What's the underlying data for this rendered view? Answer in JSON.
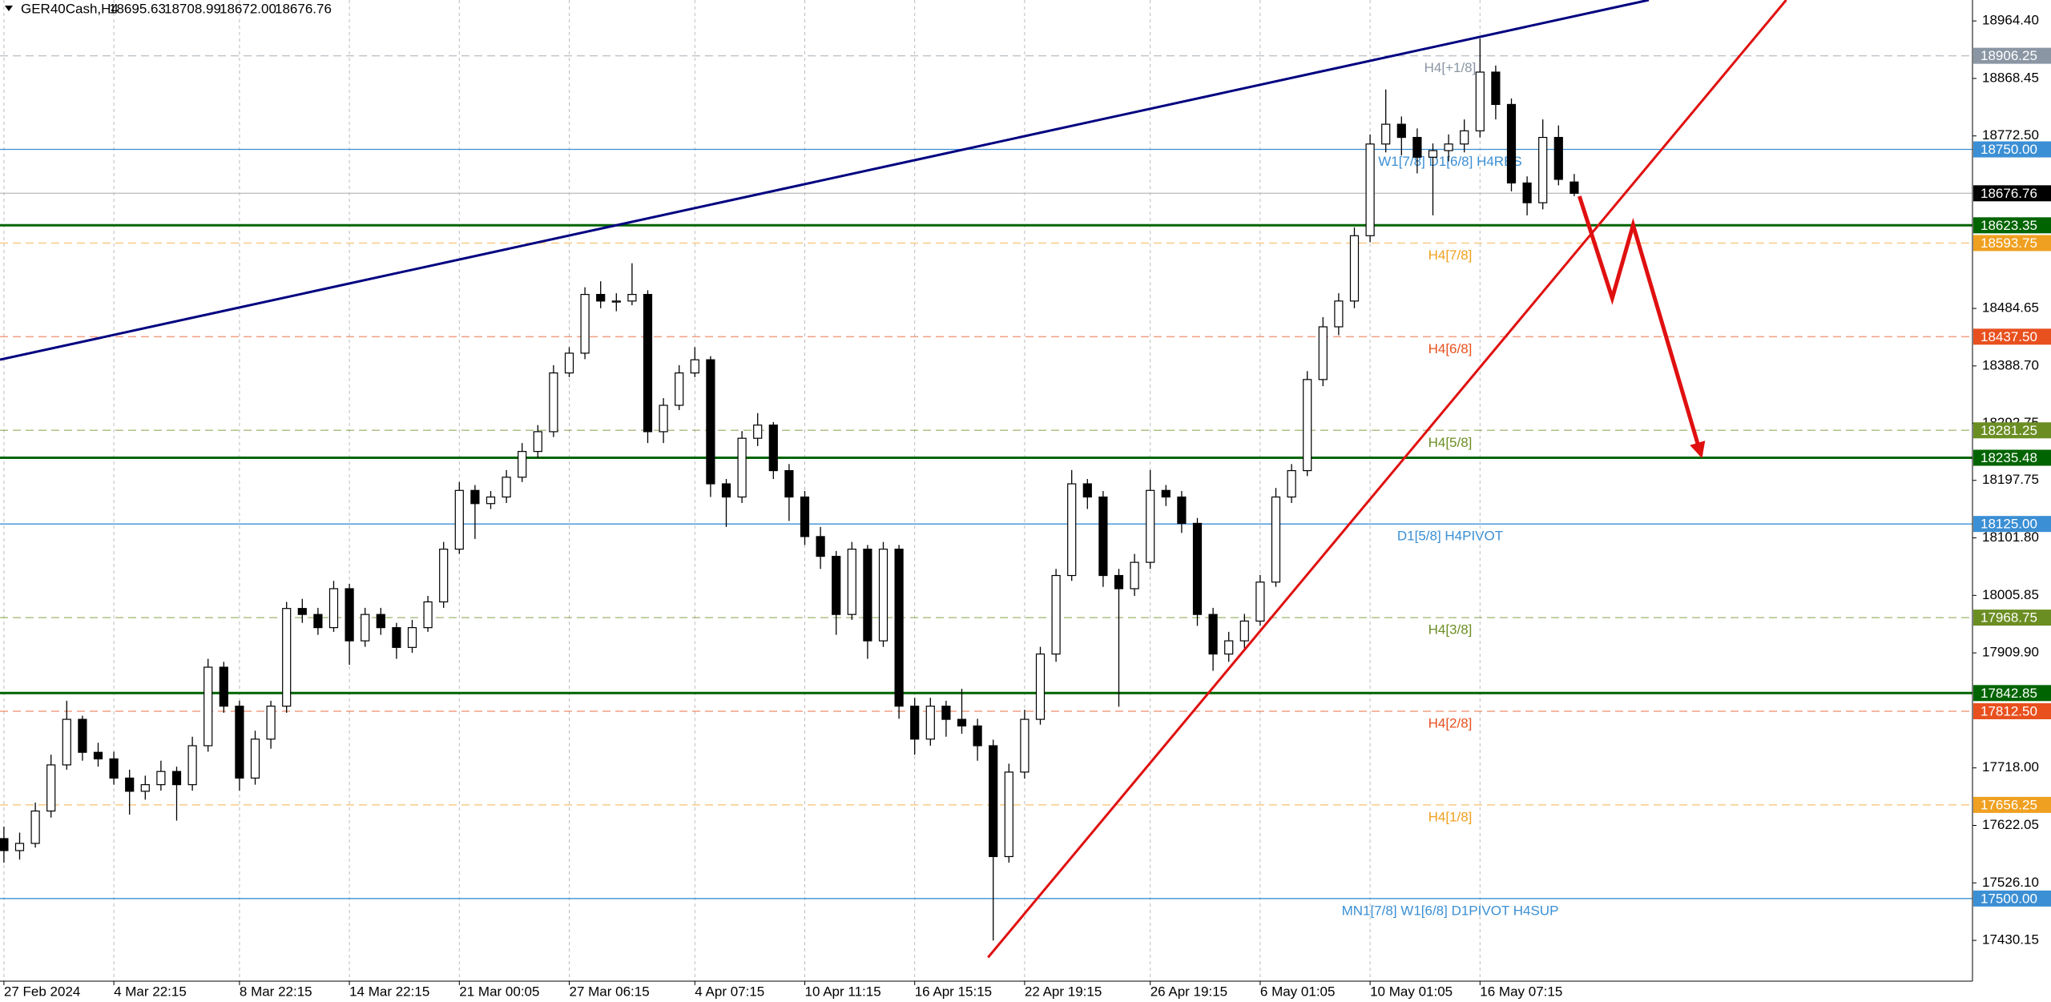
{
  "chart_data": {
    "type": "candlestick",
    "header": {
      "symbol": "GER40Cash,H4",
      "ohlc": [
        "18695.63",
        "18708.99",
        "18672.00",
        "18676.76"
      ]
    },
    "categories": [
      "27 Feb 2024",
      null,
      null,
      null,
      null,
      null,
      null,
      "4 Mar 22:15",
      null,
      null,
      null,
      null,
      null,
      null,
      null,
      "8 Mar 22:15",
      null,
      null,
      null,
      null,
      null,
      null,
      "14 Mar 22:15",
      null,
      null,
      null,
      null,
      null,
      null,
      "21 Mar 00:05",
      null,
      null,
      null,
      null,
      null,
      null,
      "27 Mar 06:15",
      null,
      null,
      null,
      null,
      null,
      null,
      null,
      "4 Apr 07:15",
      null,
      null,
      null,
      null,
      null,
      null,
      "10 Apr 11:15",
      null,
      null,
      null,
      null,
      null,
      null,
      "16 Apr 15:15",
      null,
      null,
      null,
      null,
      null,
      null,
      "22 Apr 19:15",
      null,
      null,
      null,
      null,
      null,
      null,
      null,
      "26 Apr 19:15",
      null,
      null,
      null,
      null,
      null,
      null,
      "6 May 01:05",
      null,
      null,
      null,
      null,
      null,
      null,
      "10 May 01:05",
      null,
      null,
      null,
      null,
      null,
      null,
      "16 May 07:15",
      null,
      null,
      null,
      null,
      null,
      null
    ],
    "ohlc": [
      [
        17600,
        17620,
        17560,
        17580
      ],
      [
        17580,
        17610,
        17565,
        17592
      ],
      [
        17592,
        17660,
        17585,
        17646
      ],
      [
        17646,
        17740,
        17635,
        17723
      ],
      [
        17723,
        17830,
        17715,
        17799
      ],
      [
        17799,
        17805,
        17730,
        17744
      ],
      [
        17744,
        17760,
        17720,
        17733
      ],
      [
        17733,
        17745,
        17690,
        17701
      ],
      [
        17701,
        17715,
        17640,
        17679
      ],
      [
        17679,
        17705,
        17665,
        17690
      ],
      [
        17690,
        17730,
        17680,
        17712
      ],
      [
        17712,
        17720,
        17630,
        17690
      ],
      [
        17690,
        17770,
        17680,
        17755
      ],
      [
        17755,
        17900,
        17745,
        17886
      ],
      [
        17886,
        17895,
        17810,
        17821
      ],
      [
        17821,
        17830,
        17680,
        17701
      ],
      [
        17701,
        17780,
        17690,
        17766
      ],
      [
        17766,
        17830,
        17750,
        17821
      ],
      [
        17821,
        17995,
        17810,
        17984
      ],
      [
        17984,
        18000,
        17960,
        17974
      ],
      [
        17974,
        17985,
        17940,
        17952
      ],
      [
        17952,
        18030,
        17945,
        18017
      ],
      [
        18017,
        18025,
        17890,
        17930
      ],
      [
        17930,
        17985,
        17920,
        17974
      ],
      [
        17974,
        17985,
        17940,
        17952
      ],
      [
        17952,
        17960,
        17900,
        17919
      ],
      [
        17919,
        17965,
        17910,
        17952
      ],
      [
        17952,
        18005,
        17945,
        17995
      ],
      [
        17995,
        18095,
        17985,
        18083
      ],
      [
        18083,
        18195,
        18075,
        18181
      ],
      [
        18181,
        18190,
        18100,
        18159
      ],
      [
        18159,
        18180,
        18150,
        18170
      ],
      [
        18170,
        18215,
        18160,
        18203
      ],
      [
        18203,
        18260,
        18195,
        18246
      ],
      [
        18246,
        18290,
        18235,
        18279
      ],
      [
        18279,
        18390,
        18270,
        18377
      ],
      [
        18377,
        18420,
        18370,
        18410
      ],
      [
        18410,
        18520,
        18400,
        18508
      ],
      [
        18508,
        18530,
        18485,
        18497
      ],
      [
        18497,
        18510,
        18480,
        18497
      ],
      [
        18497,
        18560,
        18490,
        18508
      ],
      [
        18508,
        18515,
        18260,
        18279
      ],
      [
        18279,
        18335,
        18260,
        18323
      ],
      [
        18323,
        18390,
        18315,
        18377
      ],
      [
        18377,
        18420,
        18370,
        18399
      ],
      [
        18399,
        18405,
        18170,
        18192
      ],
      [
        18192,
        18200,
        18120,
        18170
      ],
      [
        18170,
        18280,
        18160,
        18268
      ],
      [
        18268,
        18310,
        18255,
        18290
      ],
      [
        18290,
        18295,
        18200,
        18214
      ],
      [
        18214,
        18225,
        18130,
        18170
      ],
      [
        18170,
        18180,
        18090,
        18104
      ],
      [
        18104,
        18120,
        18050,
        18071
      ],
      [
        18071,
        18080,
        17940,
        17974
      ],
      [
        17974,
        18095,
        17965,
        18083
      ],
      [
        18083,
        18090,
        17900,
        17930
      ],
      [
        17930,
        18095,
        17920,
        18083
      ],
      [
        18083,
        18090,
        17800,
        17821
      ],
      [
        17821,
        17835,
        17740,
        17766
      ],
      [
        17766,
        17835,
        17755,
        17821
      ],
      [
        17821,
        17830,
        17770,
        17799
      ],
      [
        17799,
        17850,
        17775,
        17788
      ],
      [
        17788,
        17800,
        17730,
        17755
      ],
      [
        17755,
        17765,
        17430,
        17570
      ],
      [
        17570,
        17725,
        17560,
        17711
      ],
      [
        17711,
        17815,
        17700,
        17799
      ],
      [
        17799,
        17920,
        17790,
        17908
      ],
      [
        17908,
        18050,
        17895,
        18039
      ],
      [
        18039,
        18215,
        18030,
        18192
      ],
      [
        18192,
        18200,
        18150,
        18170
      ],
      [
        18170,
        18180,
        18020,
        18039
      ],
      [
        18039,
        18050,
        17820,
        18017
      ],
      [
        18017,
        18075,
        18005,
        18061
      ],
      [
        18061,
        18215,
        18050,
        18181
      ],
      [
        18181,
        18190,
        18155,
        18170
      ],
      [
        18170,
        18180,
        18110,
        18126
      ],
      [
        18126,
        18135,
        17955,
        17974
      ],
      [
        17974,
        17985,
        17880,
        17908
      ],
      [
        17908,
        17945,
        17895,
        17930
      ],
      [
        17930,
        17975,
        17915,
        17963
      ],
      [
        17963,
        18040,
        17955,
        18028
      ],
      [
        18028,
        18185,
        18020,
        18170
      ],
      [
        18170,
        18225,
        18160,
        18214
      ],
      [
        18214,
        18380,
        18205,
        18366
      ],
      [
        18366,
        18470,
        18355,
        18454
      ],
      [
        18454,
        18510,
        18440,
        18497
      ],
      [
        18497,
        18620,
        18485,
        18606
      ],
      [
        18606,
        18775,
        18595,
        18759
      ],
      [
        18759,
        18850,
        18745,
        18792
      ],
      [
        18792,
        18805,
        18740,
        18770
      ],
      [
        18770,
        18785,
        18710,
        18737
      ],
      [
        18737,
        18760,
        18640,
        18748
      ],
      [
        18748,
        18775,
        18730,
        18759
      ],
      [
        18759,
        18800,
        18745,
        18781
      ],
      [
        18781,
        18935,
        18770,
        18879
      ],
      [
        18879,
        18890,
        18800,
        18825
      ],
      [
        18825,
        18835,
        18680,
        18694
      ],
      [
        18694,
        18705,
        18640,
        18661
      ],
      [
        18661,
        18800,
        18650,
        18770
      ],
      [
        18770,
        18790,
        18690,
        18700
      ],
      [
        18695.63,
        18708.99,
        18672.0,
        18676.76
      ]
    ],
    "ylim": [
      17362.1,
      18999.3
    ],
    "yticks": [
      {
        "value": 18964.4,
        "label": "18964.40"
      },
      18868.45,
      {
        "value": 18772.5,
        "label": "18772.50"
      },
      18484.65,
      {
        "value": 18388.7,
        "label": "18388.70"
      },
      18292.75,
      18197.75,
      {
        "value": 18101.8,
        "label": "18101.80"
      },
      18005.85,
      {
        "value": 17909.9,
        "label": "17909.90"
      },
      {
        "value": 17718,
        "label": "17718.00"
      },
      17622.05,
      {
        "value": 17526.1,
        "label": "17526.10"
      },
      17430.15
    ],
    "levels": [
      {
        "value": 18906.25,
        "label": "18906.25",
        "text": "H4[+1/8]",
        "color": "#8a96a3",
        "style": "dash"
      },
      {
        "value": 18750,
        "label": "18750.00",
        "text": "W1[7/8] D1[6/8] H4RES",
        "color": "#3b8fd4",
        "style": "solid"
      },
      {
        "value": 18676.76,
        "label": "18676.76",
        "color": "#000000",
        "line_color": "#c0c0c0",
        "style": "solid"
      },
      {
        "value": 18623.35,
        "label": "18623.35",
        "color": "#006400",
        "style": "thick"
      },
      {
        "value": 18593.75,
        "label": "18593.75",
        "text": "H4[7/8]",
        "color": "#f0a020",
        "style": "dash"
      },
      {
        "value": 18437.5,
        "label": "18437.50",
        "text": "H4[6/8]",
        "color": "#e8501e",
        "style": "dash"
      },
      {
        "value": 18281.25,
        "label": "18281.25",
        "text": "H4[5/8]",
        "color": "#6b8e23",
        "style": "dash"
      },
      {
        "value": 18235.48,
        "label": "18235.48",
        "color": "#006400",
        "style": "thick"
      },
      {
        "value": 18125,
        "label": "18125.00",
        "text": "D1[5/8] H4PIVOT",
        "color": "#3b8fd4",
        "style": "solid"
      },
      {
        "value": 17968.75,
        "label": "17968.75",
        "text": "H4[3/8]",
        "color": "#6b8e23",
        "style": "dash"
      },
      {
        "value": 17842.85,
        "label": "17842.85",
        "color": "#006400",
        "style": "thick"
      },
      {
        "value": 17812.5,
        "label": "17812.50",
        "text": "H4[2/8]",
        "color": "#e8501e",
        "style": "dash"
      },
      {
        "value": 17656.25,
        "label": "17656.25",
        "text": "H4[1/8]",
        "color": "#f0a020",
        "style": "dash"
      },
      {
        "value": 17500,
        "label": "17500.00",
        "text": "MN1[7/8] W1[6/8] D1PIVOT H4SUP",
        "color": "#3b8fd4",
        "style": "solid"
      }
    ],
    "trendlines": [
      {
        "color": "#000080",
        "x": [
          -0.25,
          104.75
        ],
        "y": [
          18399.1,
          18999.3
        ]
      },
      {
        "color": "#e01010",
        "x": [
          62.67,
          113.5
        ],
        "y": [
          17401.7,
          18999.3
        ]
      }
    ],
    "projection": {
      "color": "#e01010",
      "x": [
        100.33,
        102.42,
        103.75,
        108.08
      ],
      "y": [
        18671.9,
        18501.7,
        18623.9,
        18239.8
      ]
    },
    "bull_color": "#ffffff",
    "bear_color": "#000000",
    "grid": true
  }
}
